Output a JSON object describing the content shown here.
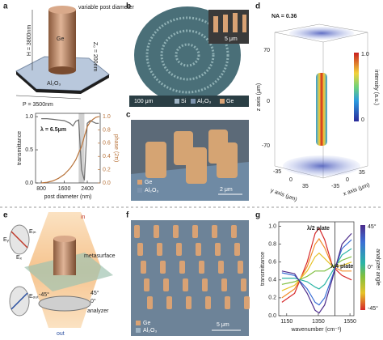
{
  "panel_a": {
    "label": "a",
    "post_label": "variable post diameter",
    "material": "Ge",
    "height": "H = 3800nm",
    "z0": "Z₀ = 200nm",
    "substrate": "Al₂O₃",
    "period": "P = 3500nm"
  },
  "panel_b": {
    "label": "b",
    "inset_scale": "5 μm",
    "scale": "100 μm",
    "legend": [
      "Si",
      "Al₂O₃",
      "Ge"
    ]
  },
  "panel_c": {
    "label": "c",
    "legend": [
      "Ge",
      "Al₂O₃"
    ],
    "scale": "2 μm"
  },
  "panel_d": {
    "label": "d",
    "na": "NA = 0.36",
    "z_label": "z axis (μm)",
    "z_ticks": [
      "70",
      "0",
      "-70"
    ],
    "y_label": "y axis (μm)",
    "y_ticks": [
      "-35",
      "0",
      "35"
    ],
    "x_label": "x axis (μm)",
    "x_ticks": [
      "-35",
      "0",
      "35"
    ],
    "colorbar_label": "intensity (a.u.)",
    "colorbar_ticks": [
      "1.0",
      "0"
    ]
  },
  "panel_e": {
    "label": "e",
    "e_in": "Eᵢₙ",
    "e_x": "Eₓ",
    "e_y": "Eᵧ",
    "e_out": "Eₒᵤₜ",
    "in": "in",
    "out": "out",
    "metasurface": "metasurface",
    "analyzer": "analyzer",
    "angles": [
      "45°",
      "0°",
      "-45°"
    ]
  },
  "panel_f": {
    "label": "f",
    "legend": [
      "Ge",
      "Al₂O₃"
    ],
    "scale": "5 μm"
  },
  "panel_g": {
    "label": "g",
    "colorbar_label": "analyzer angle",
    "colorbar_ticks": [
      "45°",
      "0°",
      "-45°"
    ]
  },
  "chart_data": [
    {
      "type": "line",
      "annotation": "λ = 6.5μm",
      "xlabel": "post diameter (nm)",
      "ylabel": "transmittance",
      "y2label": "phase (2π)",
      "x": [
        800,
        1000,
        1200,
        1400,
        1600,
        1800,
        1900,
        2000,
        2100,
        2200,
        2300,
        2400,
        2500,
        2600,
        2700,
        2800
      ],
      "series": [
        {
          "color": "#6e6e6e",
          "values": [
            0.97,
            0.97,
            0.96,
            0.95,
            0.94,
            0.9,
            0.86,
            0.93,
            0.95,
            0.2,
            0.04,
            0.9,
            0.94,
            0.92,
            0.9,
            0.9
          ]
        },
        {
          "color": "#b8733a",
          "axis": "y2",
          "values": [
            0.0,
            0.01,
            0.03,
            0.07,
            0.13,
            0.22,
            0.28,
            0.35,
            0.45,
            0.55,
            0.7,
            0.85,
            0.92,
            0.96,
            0.99,
            1.0
          ]
        }
      ],
      "shaded_range": [
        2100,
        2300
      ],
      "xlim": [
        600,
        2850
      ],
      "xticks": [
        800,
        1600,
        2400
      ],
      "ylim": [
        0,
        1.05
      ],
      "yticks": [
        {
          "value": 0,
          "label": "0.0"
        },
        0.5,
        {
          "value": 1,
          "label": "1.0"
        }
      ],
      "y2lim": [
        0,
        1.05
      ],
      "y2ticks": [
        {
          "value": 0,
          "label": "0.0"
        },
        0.2,
        0.4,
        0.6,
        0.8,
        {
          "value": 1,
          "label": "1.0"
        }
      ]
    },
    {
      "type": "line",
      "annotations": [
        "λ/2 plate",
        "λ/4 plate"
      ],
      "xlabel": "wavenumber (cm⁻¹)",
      "ylabel": "transmittance",
      "x": [
        1120,
        1200,
        1280,
        1330,
        1355,
        1390,
        1440,
        1500,
        1560
      ],
      "series": [
        {
          "color": "#d62728",
          "values": [
            0.15,
            0.25,
            0.6,
            0.92,
            0.98,
            0.85,
            0.55,
            0.45,
            0.4
          ]
        },
        {
          "color": "#f28e2b",
          "values": [
            0.2,
            0.3,
            0.55,
            0.8,
            0.86,
            0.76,
            0.55,
            0.5,
            0.5
          ]
        },
        {
          "color": "#e6c229",
          "values": [
            0.28,
            0.34,
            0.5,
            0.66,
            0.7,
            0.64,
            0.55,
            0.56,
            0.6
          ]
        },
        {
          "color": "#7fbf3f",
          "values": [
            0.35,
            0.38,
            0.44,
            0.5,
            0.5,
            0.5,
            0.55,
            0.62,
            0.66
          ]
        },
        {
          "color": "#2bb5a5",
          "values": [
            0.42,
            0.42,
            0.38,
            0.32,
            0.3,
            0.35,
            0.5,
            0.68,
            0.75
          ]
        },
        {
          "color": "#3b6fd6",
          "values": [
            0.48,
            0.45,
            0.3,
            0.15,
            0.12,
            0.2,
            0.45,
            0.75,
            0.85
          ]
        },
        {
          "color": "#4b2a8a",
          "values": [
            0.5,
            0.47,
            0.25,
            0.06,
            0.03,
            0.12,
            0.42,
            0.8,
            0.92
          ]
        }
      ],
      "divider_x": 1455,
      "xlim": [
        1100,
        1575
      ],
      "xticks": [
        1150,
        1350,
        1550
      ],
      "ylim": [
        0,
        1.05
      ],
      "yticks": [
        {
          "value": 0,
          "label": "0.0"
        },
        0.2,
        0.4,
        0.6,
        0.8,
        {
          "value": 1,
          "label": "1.0"
        }
      ]
    }
  ]
}
